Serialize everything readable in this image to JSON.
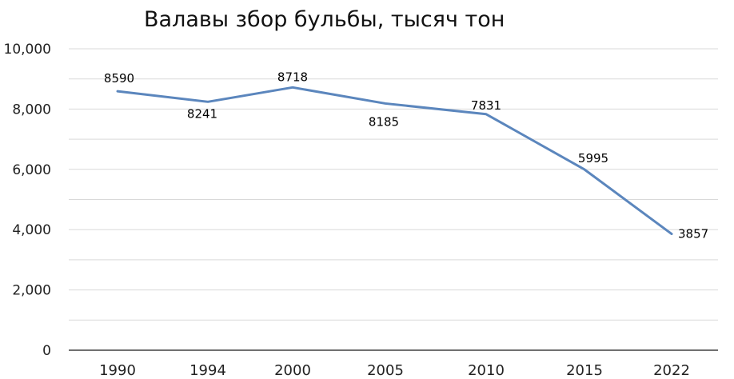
{
  "chart_data": {
    "type": "line",
    "title": "Валавы збор бульбы, тысяч тон",
    "xlabel": "",
    "ylabel": "",
    "categories": [
      "1990",
      "1994",
      "2000",
      "2005",
      "2010",
      "2015",
      "2022"
    ],
    "series": [
      {
        "values": [
          8590,
          8241,
          8718,
          8185,
          7831,
          5995,
          3857
        ],
        "color": "#5b86bd"
      }
    ],
    "data_labels": [
      "8590",
      "8241",
      "8718",
      "8185",
      "7831",
      "5995",
      "3857"
    ],
    "ylim": [
      0,
      10000
    ],
    "yticks": [
      0,
      2000,
      4000,
      6000,
      8000,
      10000
    ],
    "ytick_labels": [
      "0",
      "2,000",
      "4,000",
      "6,000",
      "8,000",
      "10,000"
    ],
    "grid": true,
    "legend": "none"
  }
}
